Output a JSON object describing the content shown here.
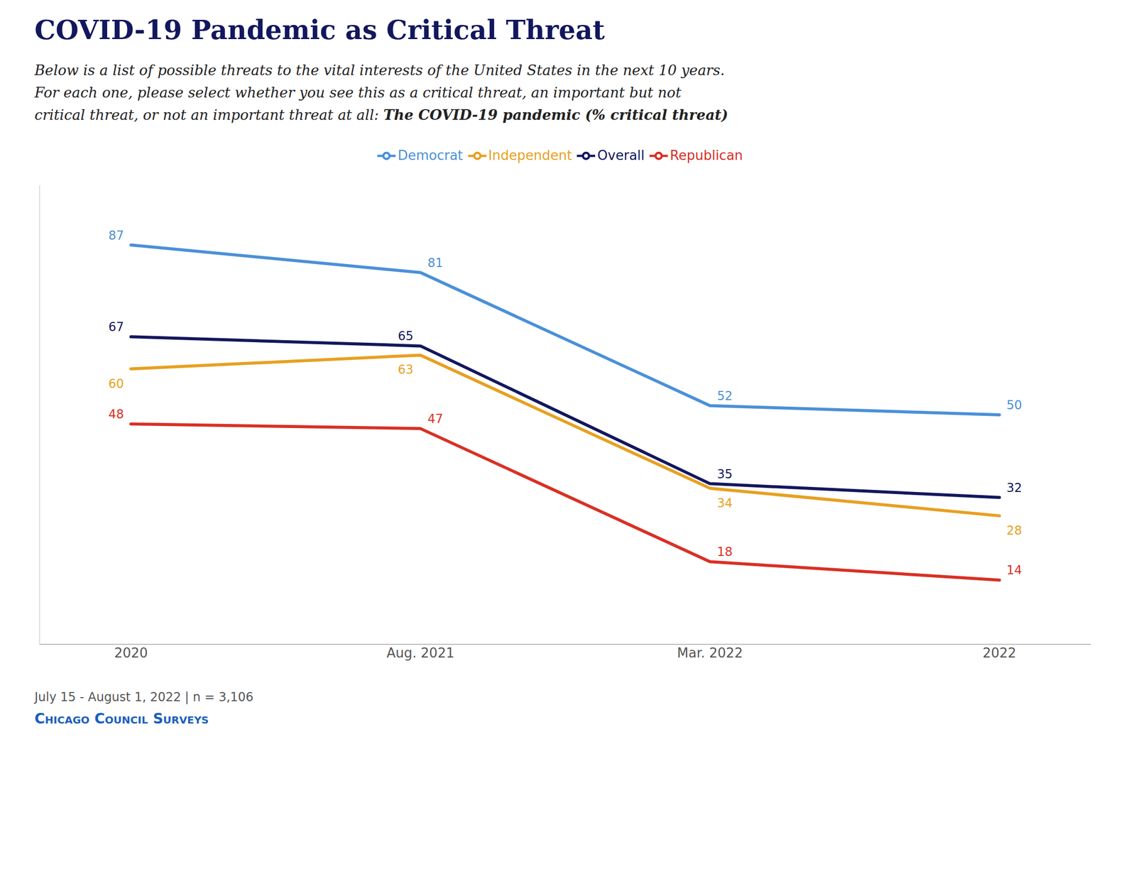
{
  "chart_data": {
    "type": "line",
    "title": "COVID-19 Pandemic as Critical Threat",
    "subtitle": [
      "Below is a list of possible threats to the vital interests of the United States in the next 10 years.",
      "For each one, please select whether you see this as a critical threat, an important but not",
      "critical threat, or not an important threat at all: The COVID-19 pandemic (% critical threat)"
    ],
    "annotations": [
      "July 15 - August 1, 2022 | n = 3,106",
      "Chicago Council Surveys"
    ],
    "categories": [
      "2020",
      "Aug. 2021",
      "Mar. 2022",
      "2022"
    ],
    "series": [
      {
        "name": "Overall",
        "color": "#12175e",
        "values": [
          67,
          65,
          35,
          32
        ]
      },
      {
        "name": "Democrat",
        "color": "#4a90d9",
        "values": [
          87,
          81,
          52,
          50
        ]
      },
      {
        "name": "Republican",
        "color": "#d93025",
        "values": [
          48,
          47,
          18,
          14
        ]
      },
      {
        "name": "Independent",
        "color": "#e8a020",
        "values": [
          60,
          63,
          34,
          28
        ]
      }
    ],
    "ylim": [
      0,
      100
    ],
    "tick_labels": "x",
    "legend": "top",
    "data_labels": true,
    "grid": false
  }
}
